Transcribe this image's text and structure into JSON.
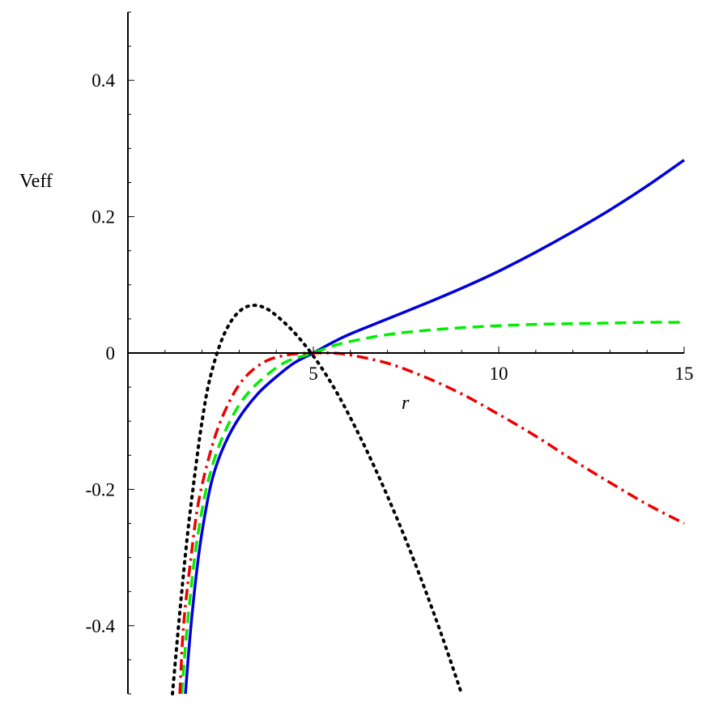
{
  "chart_data": {
    "type": "line",
    "title": "",
    "xlabel": "r",
    "ylabel": "Veff",
    "xlim": [
      0,
      15
    ],
    "ylim": [
      -0.5,
      0.5
    ],
    "x_ticks": [
      5,
      10,
      15
    ],
    "y_ticks": [
      -0.4,
      -0.2,
      0,
      0.2,
      0.4
    ],
    "x_tick_labels": [
      "5",
      "10",
      "15"
    ],
    "y_tick_labels": [
      "-0.4",
      "-0.2",
      "0",
      "0.2",
      "0.4"
    ],
    "grid": false,
    "legend": "none",
    "series": [
      {
        "color": "#0000dd",
        "style": "solid",
        "x": [
          1.55,
          1.7,
          1.9,
          2.1,
          2.3,
          2.6,
          3.0,
          3.5,
          4.0,
          4.5,
          5.0,
          5.5,
          6.0,
          7.0,
          8.0,
          9.0,
          10.0,
          11.0,
          12.0,
          13.0,
          14.0,
          15.0
        ],
        "y": [
          -0.5,
          -0.4,
          -0.3,
          -0.23,
          -0.18,
          -0.135,
          -0.095,
          -0.06,
          -0.035,
          -0.014,
          0.0,
          0.015,
          0.028,
          0.05,
          0.072,
          0.095,
          0.12,
          0.148,
          0.178,
          0.21,
          0.245,
          0.283
        ]
      },
      {
        "color": "#00ee00",
        "style": "dash",
        "x": [
          1.45,
          1.6,
          1.8,
          2.0,
          2.2,
          2.5,
          2.9,
          3.3,
          3.8,
          4.3,
          5.0,
          5.5,
          6.0,
          7.0,
          8.0,
          9.0,
          10.0,
          11.0,
          12.0,
          13.0,
          14.0,
          15.0
        ],
        "y": [
          -0.5,
          -0.4,
          -0.3,
          -0.23,
          -0.18,
          -0.13,
          -0.085,
          -0.055,
          -0.03,
          -0.012,
          0.0,
          0.01,
          0.017,
          0.027,
          0.033,
          0.037,
          0.04,
          0.042,
          0.043,
          0.044,
          0.045,
          0.045
        ]
      },
      {
        "color": "#ee0000",
        "style": "dashdot",
        "x": [
          1.4,
          1.5,
          1.7,
          1.9,
          2.2,
          2.5,
          2.9,
          3.3,
          3.8,
          4.4,
          5.0,
          5.5,
          6.0,
          7.0,
          8.0,
          9.0,
          10.0,
          11.0,
          12.0,
          13.0,
          14.0,
          15.0
        ],
        "y": [
          -0.5,
          -0.4,
          -0.3,
          -0.22,
          -0.15,
          -0.1,
          -0.055,
          -0.028,
          -0.01,
          -0.002,
          0.0,
          0.0,
          -0.003,
          -0.015,
          -0.035,
          -0.06,
          -0.09,
          -0.122,
          -0.157,
          -0.19,
          -0.222,
          -0.25
        ]
      },
      {
        "color": "#000000",
        "style": "dot",
        "x": [
          1.2,
          1.4,
          1.6,
          1.8,
          2.0,
          2.2,
          2.5,
          2.8,
          3.1,
          3.4,
          3.7,
          4.0,
          4.4,
          4.8,
          5.2,
          5.6,
          6.0,
          6.5,
          7.0,
          7.5,
          8.0,
          8.5,
          9.0
        ],
        "y": [
          -0.5,
          -0.38,
          -0.27,
          -0.18,
          -0.1,
          -0.04,
          0.015,
          0.048,
          0.065,
          0.07,
          0.066,
          0.055,
          0.035,
          0.01,
          -0.02,
          -0.055,
          -0.095,
          -0.15,
          -0.21,
          -0.275,
          -0.345,
          -0.42,
          -0.5
        ]
      }
    ]
  }
}
